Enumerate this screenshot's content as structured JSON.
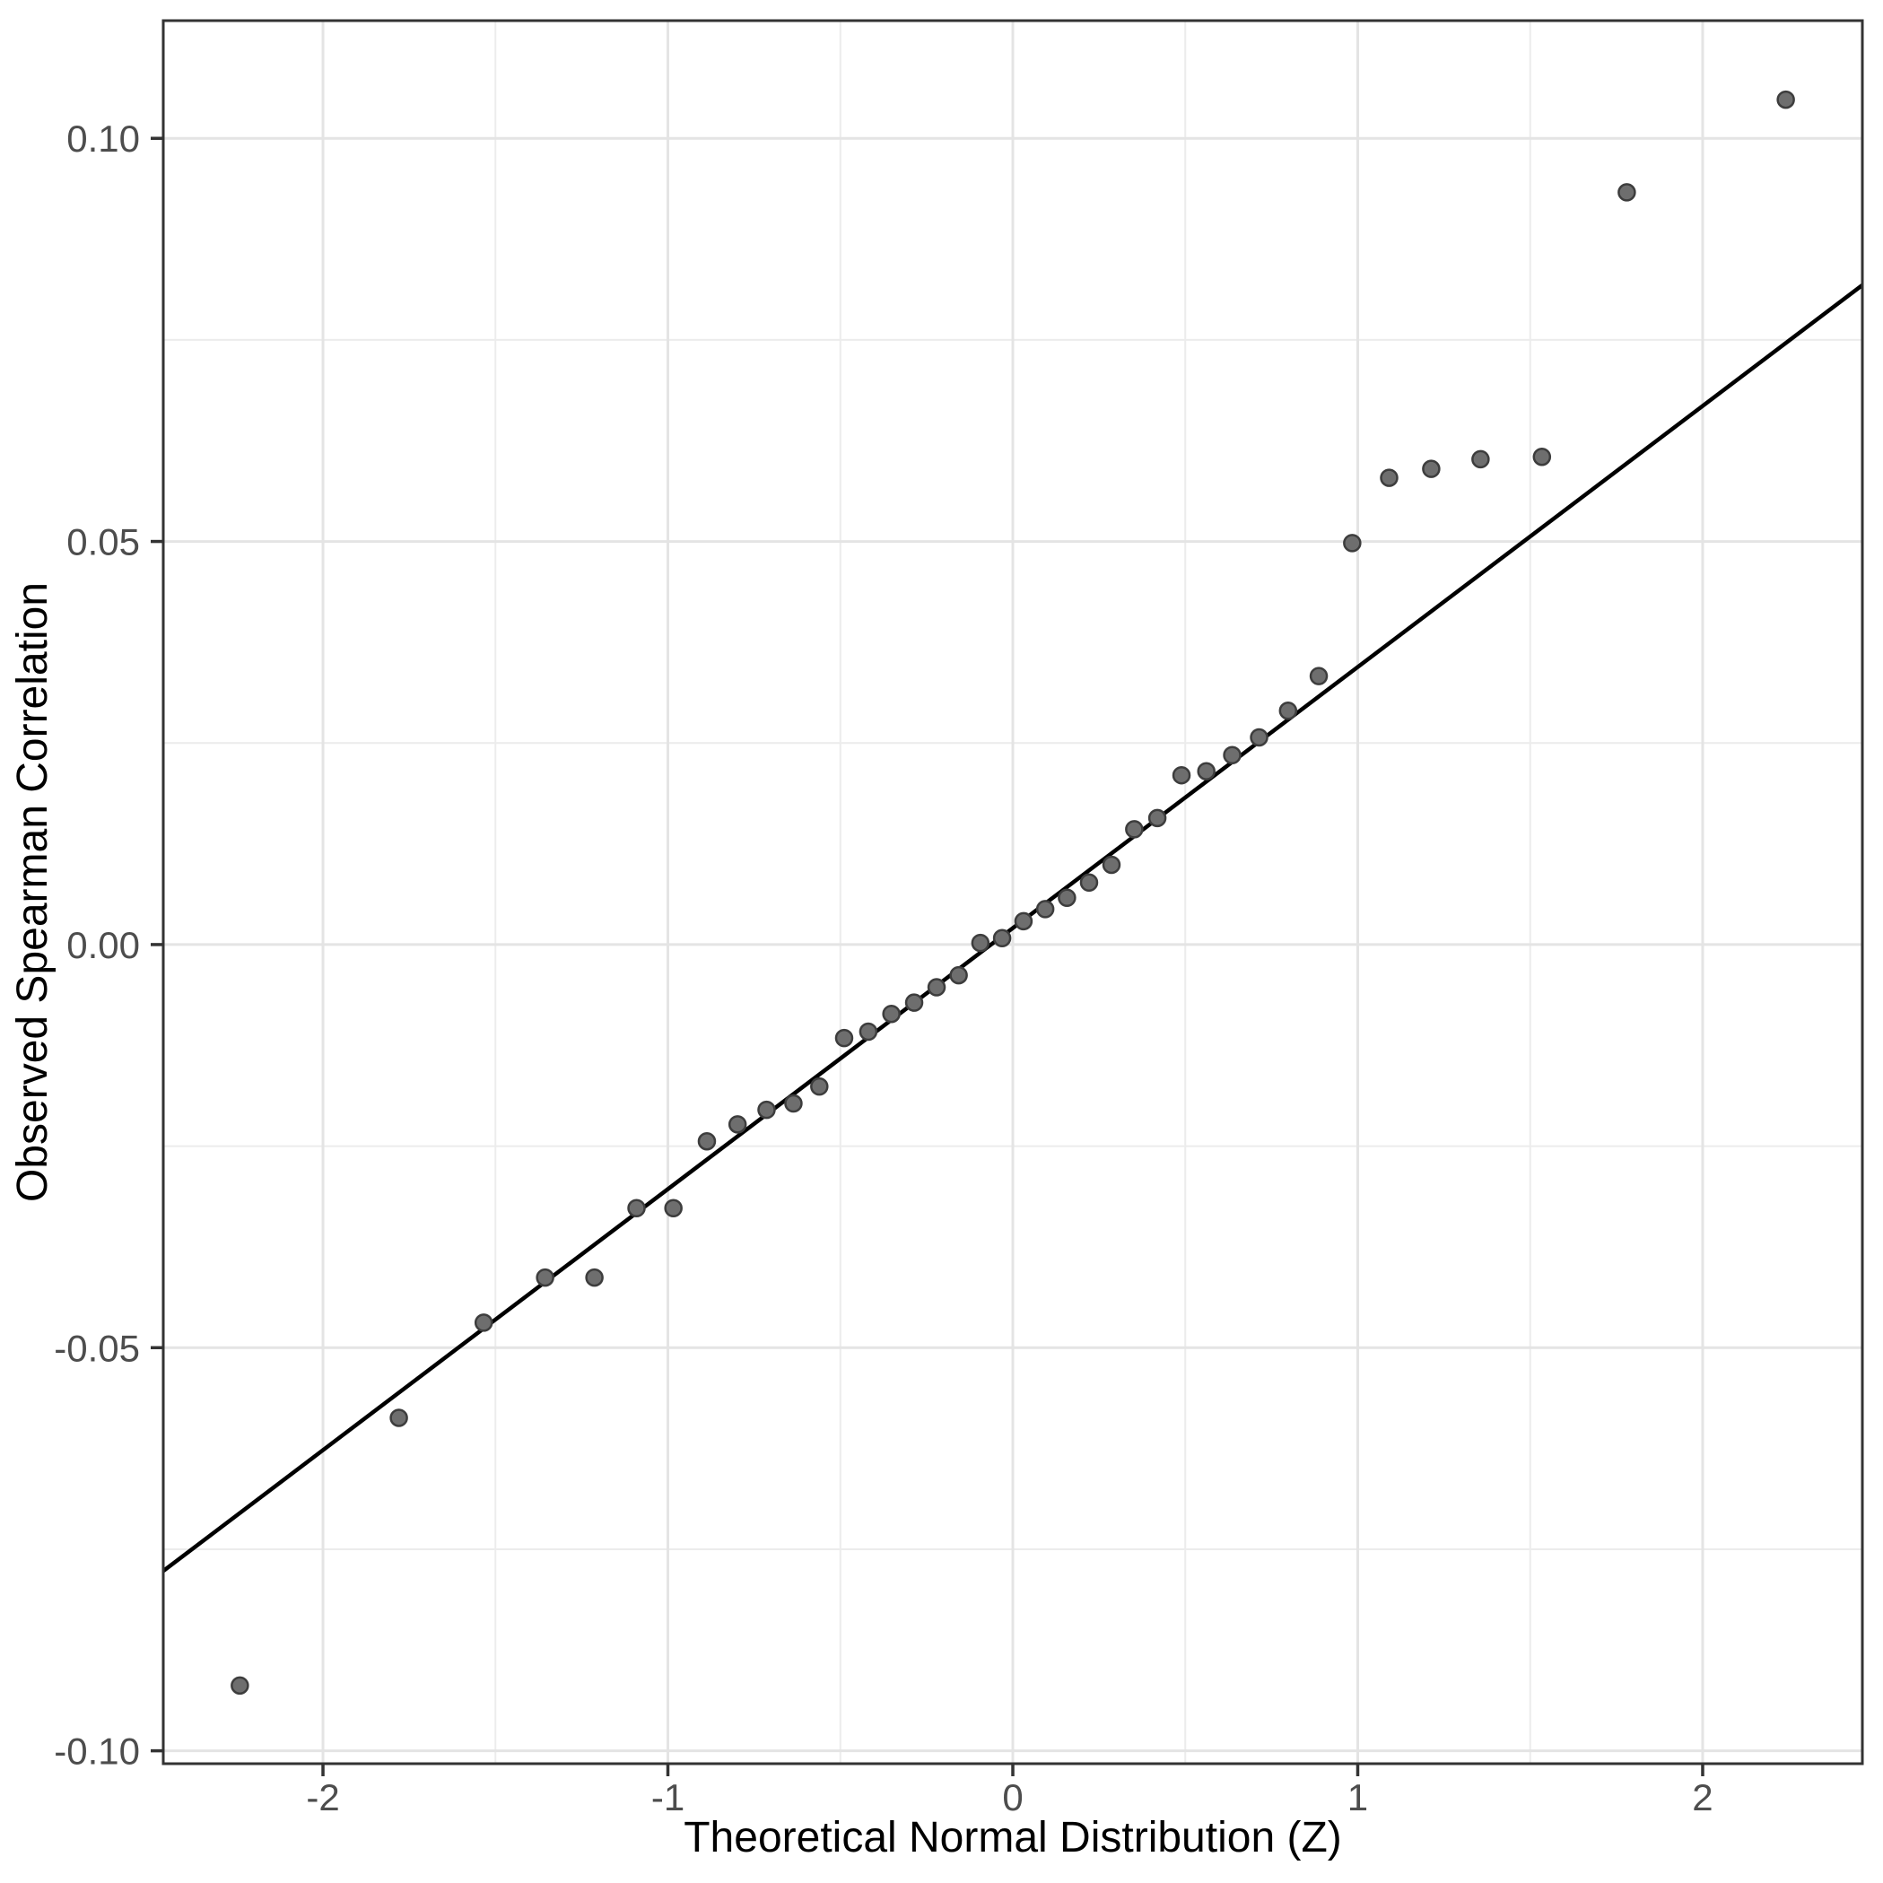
{
  "chart_data": {
    "type": "scatter",
    "title": "",
    "xlabel": "Theoretical Normal Distribution (Z)",
    "ylabel": "Observed Spearman Correlation",
    "xlim": [
      -2.463,
      2.463
    ],
    "ylim": [
      -0.1016,
      0.1146
    ],
    "grid": "on",
    "legend": "none",
    "x_major_ticks": [
      -2,
      -1,
      0,
      1,
      2
    ],
    "x_tick_labels": [
      "-2",
      "-1",
      "0",
      "1",
      "2"
    ],
    "y_major_ticks": [
      0.1,
      0.05,
      0.0,
      -0.05,
      -0.1
    ],
    "y_tick_labels": [
      "0.10",
      "0.05",
      "0.00",
      "-0.05",
      "-0.10"
    ],
    "x_minor_ticks": [
      -1.5,
      -0.5,
      0.5,
      1.5
    ],
    "y_minor_ticks": [
      0.075,
      0.025,
      -0.025,
      -0.075
    ],
    "series": [
      {
        "name": "observed-vs-theoretical-quantiles",
        "points": [
          [
            -2.241,
            -0.0919
          ],
          [
            -1.78,
            -0.0587
          ],
          [
            -1.534,
            -0.0469
          ],
          [
            -1.356,
            -0.0413
          ],
          [
            -1.213,
            -0.0413
          ],
          [
            -1.091,
            -0.0327
          ],
          [
            -0.984,
            -0.0327
          ],
          [
            -0.887,
            -0.0244
          ],
          [
            -0.798,
            -0.0223
          ],
          [
            -0.714,
            -0.0205
          ],
          [
            -0.636,
            -0.0197
          ],
          [
            -0.561,
            -0.0176
          ],
          [
            -0.489,
            -0.0116
          ],
          [
            -0.419,
            -0.0108
          ],
          [
            -0.352,
            -0.0086
          ],
          [
            -0.286,
            -0.0072
          ],
          [
            -0.221,
            -0.0053
          ],
          [
            -0.157,
            -0.0038
          ],
          [
            -0.094,
            0.0002
          ],
          [
            -0.031,
            0.0008
          ],
          [
            0.031,
            0.0029
          ],
          [
            0.094,
            0.0044
          ],
          [
            0.157,
            0.0058
          ],
          [
            0.221,
            0.0077
          ],
          [
            0.286,
            0.0099
          ],
          [
            0.352,
            0.0143
          ],
          [
            0.419,
            0.0157
          ],
          [
            0.489,
            0.021
          ],
          [
            0.561,
            0.0215
          ],
          [
            0.636,
            0.0235
          ],
          [
            0.714,
            0.0257
          ],
          [
            0.798,
            0.029
          ],
          [
            0.887,
            0.0333
          ],
          [
            0.984,
            0.0498
          ],
          [
            1.091,
            0.0579
          ],
          [
            1.213,
            0.059
          ],
          [
            1.356,
            0.0602
          ],
          [
            1.534,
            0.0605
          ],
          [
            1.78,
            0.0933
          ],
          [
            2.241,
            0.1048
          ]
        ]
      }
    ],
    "reference_line": {
      "x1": -2.463,
      "y1": -0.0777,
      "x2": 2.463,
      "y2": 0.0818
    },
    "colors": {
      "background": "#ffffff",
      "panel_background": "#ffffff",
      "grid_major": "#e4e4e4",
      "grid_minor": "#ececec",
      "panel_border": "#333333",
      "tick_mark": "#333333",
      "tick_label": "#4d4d4d",
      "axis_title": "#000000",
      "point_fill": "#6e6e6e",
      "point_stroke": "#3d3d3d",
      "reference_line": "#000000"
    }
  }
}
